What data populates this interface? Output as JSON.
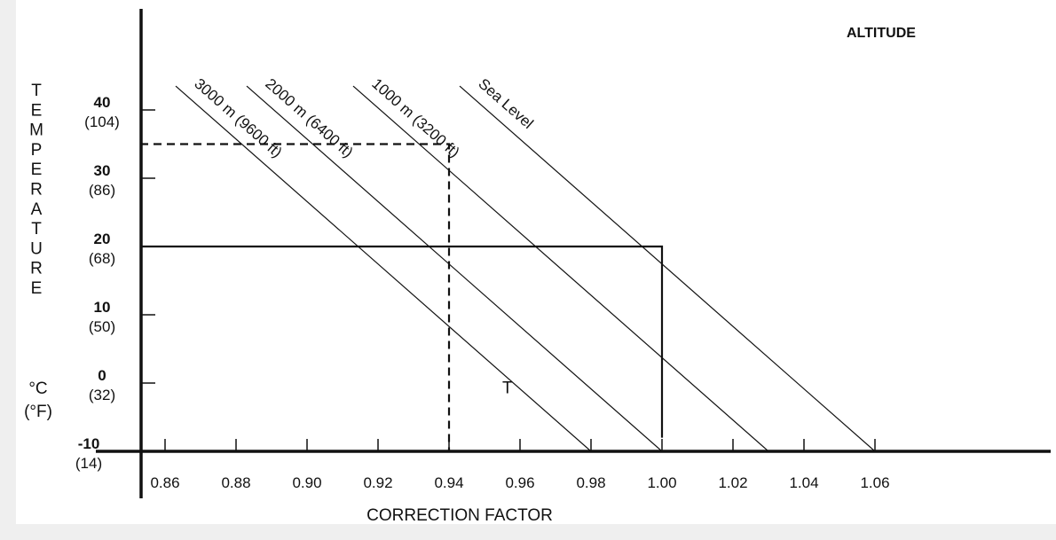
{
  "chart_data": {
    "type": "line",
    "header": "ALTITUDE",
    "xlabel": "CORRECTION FACTOR",
    "ylabel_letters": [
      "T",
      "E",
      "M",
      "P",
      "E",
      "R",
      "A",
      "T",
      "U",
      "R",
      "E"
    ],
    "ylabel_units": [
      "°C",
      "(°F)"
    ],
    "xlim": [
      0.84,
      1.1
    ],
    "ylim": [
      -10,
      45
    ],
    "x_ticks": [
      "0.86",
      "0.88",
      "0.90",
      "0.92",
      "0.94",
      "0.96",
      "0.98",
      "1.00",
      "1.02",
      "1.04",
      "1.06"
    ],
    "x_tick_values": [
      0.86,
      0.88,
      0.9,
      0.92,
      0.94,
      0.96,
      0.98,
      1.0,
      1.02,
      1.04,
      1.06
    ],
    "y_ticks": [
      {
        "value": 40,
        "c": "40",
        "f": "(104)"
      },
      {
        "value": 30,
        "c": "30",
        "f": "(86)"
      },
      {
        "value": 20,
        "c": "20",
        "f": "(68)"
      },
      {
        "value": 10,
        "c": "10",
        "f": "(50)"
      },
      {
        "value": 0,
        "c": "0",
        "f": "(32)"
      },
      {
        "value": -10,
        "c": "-10",
        "f": "(14)"
      }
    ],
    "series": [
      {
        "name": "3000 m (9600 ft)",
        "x": [
          0.863,
          0.98
        ],
        "y": [
          43.5,
          -10
        ]
      },
      {
        "name": "2000 m (6400 ft)",
        "x": [
          0.883,
          1.0
        ],
        "y": [
          43.5,
          -10
        ]
      },
      {
        "name": "1000 m (3200 ft)",
        "x": [
          0.913,
          1.03
        ],
        "y": [
          43.5,
          -10
        ]
      },
      {
        "name": "Sea Level",
        "x": [
          0.943,
          1.06
        ],
        "y": [
          43.5,
          -10
        ]
      }
    ],
    "guides": [
      {
        "name": "example-20C",
        "style": "solid",
        "x": [
          0.853,
          1.0,
          1.0
        ],
        "y": [
          20,
          20,
          -8
        ]
      },
      {
        "name": "example-35C",
        "style": "dashed",
        "x": [
          0.853,
          0.94,
          0.94
        ],
        "y": [
          35,
          35,
          -10
        ]
      }
    ],
    "annotation": "T",
    "annotation_x": 0.955,
    "annotation_y": -0.2
  }
}
